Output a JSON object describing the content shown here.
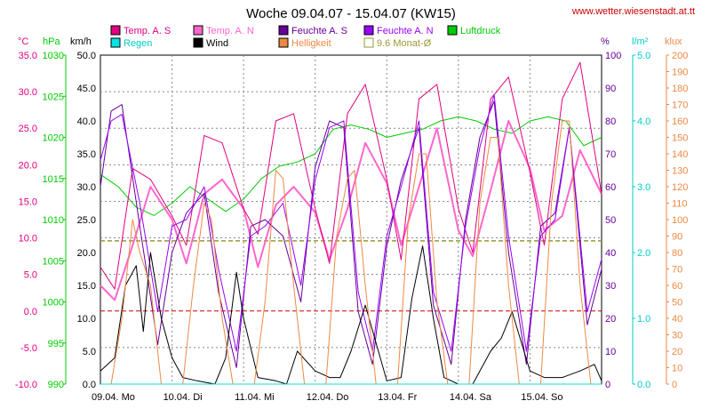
{
  "title": "Woche 09.04.07 - 15.04.07 (KW15)",
  "website": "www.wetter.wiesenstadt.at.tt",
  "legend": [
    {
      "label": "Temp. A. S",
      "color": "#e0007f"
    },
    {
      "label": "Temp. A. N",
      "color": "#ff66cc"
    },
    {
      "label": "Feuchte A. S",
      "color": "#660099"
    },
    {
      "label": "Feuchte A. N",
      "color": "#9900ff"
    },
    {
      "label": "Luftdruck",
      "color": "#00cc00"
    },
    {
      "label": "Regen",
      "color": "#00e5e5"
    },
    {
      "label": "Wind",
      "color": "#000000"
    },
    {
      "label": "Helligkeit",
      "color": "#ee8844"
    },
    {
      "label": "9.6 Monat-Ø",
      "color": "#999933"
    }
  ],
  "axes": {
    "temp": {
      "unit": "°C",
      "color": "#e0007f",
      "ticks": [
        "35.0",
        "30.0",
        "25.0",
        "20.0",
        "15.0",
        "10.0",
        "5.0",
        "0.0",
        "-5.0",
        "-10.0"
      ]
    },
    "pressure": {
      "unit": "hPa",
      "color": "#00cc00",
      "ticks": [
        "1030",
        "1025",
        "1020",
        "1015",
        "1010",
        "1005",
        "1000",
        "995",
        "990"
      ]
    },
    "wind": {
      "unit": "km/h",
      "color": "#000000",
      "ticks": [
        "50.0",
        "45.0",
        "40.0",
        "35.0",
        "30.0",
        "25.0",
        "20.0",
        "15.0",
        "10.0",
        "5.0",
        "0.0"
      ]
    },
    "humidity": {
      "unit": "%",
      "color": "#660099",
      "ticks": [
        "100",
        "90",
        "80",
        "70",
        "60",
        "50",
        "40",
        "30",
        "20",
        "10",
        "0"
      ]
    },
    "rain": {
      "unit": "l/m²",
      "color": "#00cccc",
      "ticks": [
        "5.0",
        "4.0",
        "3.0",
        "2.0",
        "1.0",
        "0.0"
      ]
    },
    "light": {
      "unit": "klux",
      "color": "#ee8844",
      "ticks": [
        "200",
        "190",
        "180",
        "170",
        "160",
        "150",
        "140",
        "130",
        "120",
        "110",
        "100",
        "90",
        "80",
        "70",
        "60",
        "50",
        "40",
        "30",
        "20",
        "10",
        "0"
      ]
    }
  },
  "chart_data": {
    "type": "line",
    "title": "Woche 09.04.07 - 15.04.07 (KW15)",
    "x_labels": [
      "09.04. Mo",
      "10.04. Di",
      "11.04. Mi",
      "12.04. Do",
      "13.04. Fr",
      "14.04. Sa",
      "15.04. So"
    ],
    "x_range_days": [
      0,
      7
    ],
    "grid": true,
    "reference_lines": [
      {
        "name": "9.6 Monat-Ø",
        "axis": "temp",
        "value": 9.6,
        "color": "#999933",
        "style": "dashed"
      },
      {
        "name": "0 °C",
        "axis": "temp",
        "value": 0,
        "color": "#cc0000",
        "style": "dashed"
      }
    ],
    "series": [
      {
        "name": "Luftdruck",
        "axis": "pressure",
        "color": "#00cc00",
        "x": [
          0,
          0.25,
          0.5,
          0.75,
          1,
          1.25,
          1.5,
          1.75,
          2,
          2.25,
          2.5,
          2.75,
          3,
          3.25,
          3.5,
          3.75,
          4,
          4.25,
          4.5,
          4.75,
          5,
          5.25,
          5.5,
          5.75,
          6,
          6.25,
          6.5,
          6.75,
          7
        ],
        "y": [
          1015.5,
          1014,
          1011.5,
          1010.5,
          1012,
          1014,
          1012.5,
          1011,
          1012.5,
          1015,
          1016.5,
          1017,
          1018,
          1021,
          1021.5,
          1021,
          1020,
          1020.5,
          1021,
          1022,
          1022.5,
          1022,
          1021,
          1020.5,
          1022,
          1022.5,
          1022,
          1019,
          1020
        ]
      },
      {
        "name": "Temp. A. N",
        "axis": "temp",
        "color": "#ff66cc",
        "x": [
          0,
          0.2,
          0.45,
          0.7,
          1,
          1.2,
          1.45,
          1.7,
          2,
          2.2,
          2.45,
          2.7,
          3,
          3.2,
          3.45,
          3.7,
          4,
          4.2,
          4.45,
          4.7,
          5,
          5.2,
          5.45,
          5.7,
          6,
          6.2,
          6.45,
          6.7,
          7
        ],
        "y": [
          3.5,
          1.5,
          9,
          17,
          12.5,
          6.5,
          16,
          18,
          14,
          6,
          14.5,
          17,
          13.5,
          7,
          14,
          23,
          17.5,
          9,
          17,
          25,
          11,
          7.5,
          16.5,
          26,
          19.5,
          11,
          13,
          22,
          16
        ]
      },
      {
        "name": "Temp. A. S",
        "axis": "temp",
        "color": "#e0007f",
        "x": [
          0,
          0.2,
          0.45,
          0.7,
          1,
          1.2,
          1.45,
          1.7,
          2,
          2.2,
          2.45,
          2.7,
          3,
          3.2,
          3.45,
          3.7,
          4,
          4.2,
          4.45,
          4.7,
          5,
          5.2,
          5.45,
          5.7,
          6,
          6.2,
          6.45,
          6.7,
          7
        ],
        "y": [
          6,
          3,
          19.5,
          18,
          13,
          9,
          24,
          23,
          14,
          10.5,
          26,
          27,
          14,
          6.5,
          27,
          31,
          18,
          7,
          29,
          31,
          14,
          8,
          29,
          32,
          19,
          9,
          29,
          34,
          16
        ]
      },
      {
        "name": "Feuchte A. S",
        "axis": "humidity",
        "color": "#660099",
        "x": [
          0,
          0.15,
          0.3,
          0.55,
          0.8,
          1,
          1.2,
          1.45,
          1.65,
          1.9,
          2.1,
          2.3,
          2.55,
          2.8,
          3,
          3.2,
          3.4,
          3.6,
          3.8,
          4,
          4.2,
          4.45,
          4.65,
          4.9,
          5.1,
          5.3,
          5.5,
          5.7,
          5.95,
          6.15,
          6.35,
          6.55,
          6.8,
          7
        ],
        "y": [
          60,
          83,
          85,
          48,
          12,
          40,
          52,
          58,
          28,
          5,
          48,
          50,
          45,
          25,
          66,
          80,
          78,
          22,
          6,
          42,
          62,
          78,
          24,
          6,
          50,
          75,
          86,
          40,
          6,
          48,
          52,
          78,
          18,
          35
        ]
      },
      {
        "name": "Feuchte A. N",
        "axis": "humidity",
        "color": "#9900ff",
        "x": [
          0,
          0.15,
          0.3,
          0.55,
          0.8,
          1,
          1.2,
          1.45,
          1.65,
          1.9,
          2.1,
          2.3,
          2.55,
          2.8,
          3,
          3.2,
          3.4,
          3.6,
          3.8,
          4,
          4.2,
          4.45,
          4.65,
          4.9,
          5.1,
          5.3,
          5.5,
          5.7,
          5.95,
          6.15,
          6.35,
          6.55,
          6.8,
          7
        ],
        "y": [
          68,
          80,
          82,
          55,
          22,
          48,
          50,
          60,
          35,
          10,
          45,
          48,
          55,
          30,
          62,
          78,
          80,
          28,
          10,
          45,
          60,
          80,
          28,
          10,
          48,
          72,
          88,
          45,
          10,
          45,
          50,
          78,
          22,
          38
        ]
      },
      {
        "name": "Wind",
        "axis": "wind",
        "color": "#000000",
        "x": [
          0,
          0.2,
          0.35,
          0.5,
          0.6,
          0.7,
          0.85,
          1,
          1.15,
          1.35,
          1.6,
          1.75,
          1.9,
          2,
          2.2,
          2.45,
          2.6,
          2.75,
          3,
          3.2,
          3.35,
          3.5,
          3.7,
          4,
          4.2,
          4.35,
          4.5,
          4.65,
          4.8,
          5,
          5.2,
          5.45,
          5.6,
          5.75,
          6,
          6.2,
          6.45,
          6.7,
          6.9,
          7
        ],
        "y": [
          2,
          4,
          15,
          18,
          8,
          20,
          10,
          4,
          1,
          0.5,
          0,
          4,
          17,
          10,
          1,
          0.5,
          0,
          5,
          2,
          1,
          1,
          5,
          12,
          0.5,
          1,
          13,
          21,
          10,
          1,
          0,
          0,
          5,
          7,
          11,
          2,
          1,
          1,
          2,
          3,
          0.5
        ]
      },
      {
        "name": "Helligkeit",
        "axis": "light",
        "color": "#ee8844",
        "x": [
          0,
          0.15,
          0.3,
          0.45,
          0.55,
          0.7,
          0.85,
          1,
          1.15,
          1.3,
          1.45,
          1.55,
          1.7,
          1.85,
          2,
          2.15,
          2.3,
          2.45,
          2.55,
          2.7,
          2.85,
          3,
          3.15,
          3.3,
          3.45,
          3.55,
          3.7,
          3.85,
          4,
          4.15,
          4.3,
          4.45,
          4.55,
          4.7,
          4.85,
          5,
          5.15,
          5.3,
          5.45,
          5.55,
          5.7,
          5.85,
          6,
          6.15,
          6.3,
          6.45,
          6.55,
          6.7,
          6.85,
          7
        ],
        "y": [
          0,
          0,
          40,
          100,
          80,
          60,
          0,
          0,
          0,
          60,
          110,
          100,
          40,
          0,
          0,
          0,
          50,
          130,
          125,
          60,
          0,
          0,
          0,
          90,
          125,
          130,
          60,
          0,
          0,
          0,
          100,
          140,
          140,
          50,
          0,
          0,
          0,
          110,
          150,
          150,
          60,
          0,
          0,
          0,
          110,
          160,
          160,
          60,
          0,
          0
        ]
      },
      {
        "name": "Regen",
        "axis": "rain",
        "color": "#00e5e5",
        "x": [
          0,
          7
        ],
        "y": [
          0,
          0
        ]
      }
    ]
  }
}
